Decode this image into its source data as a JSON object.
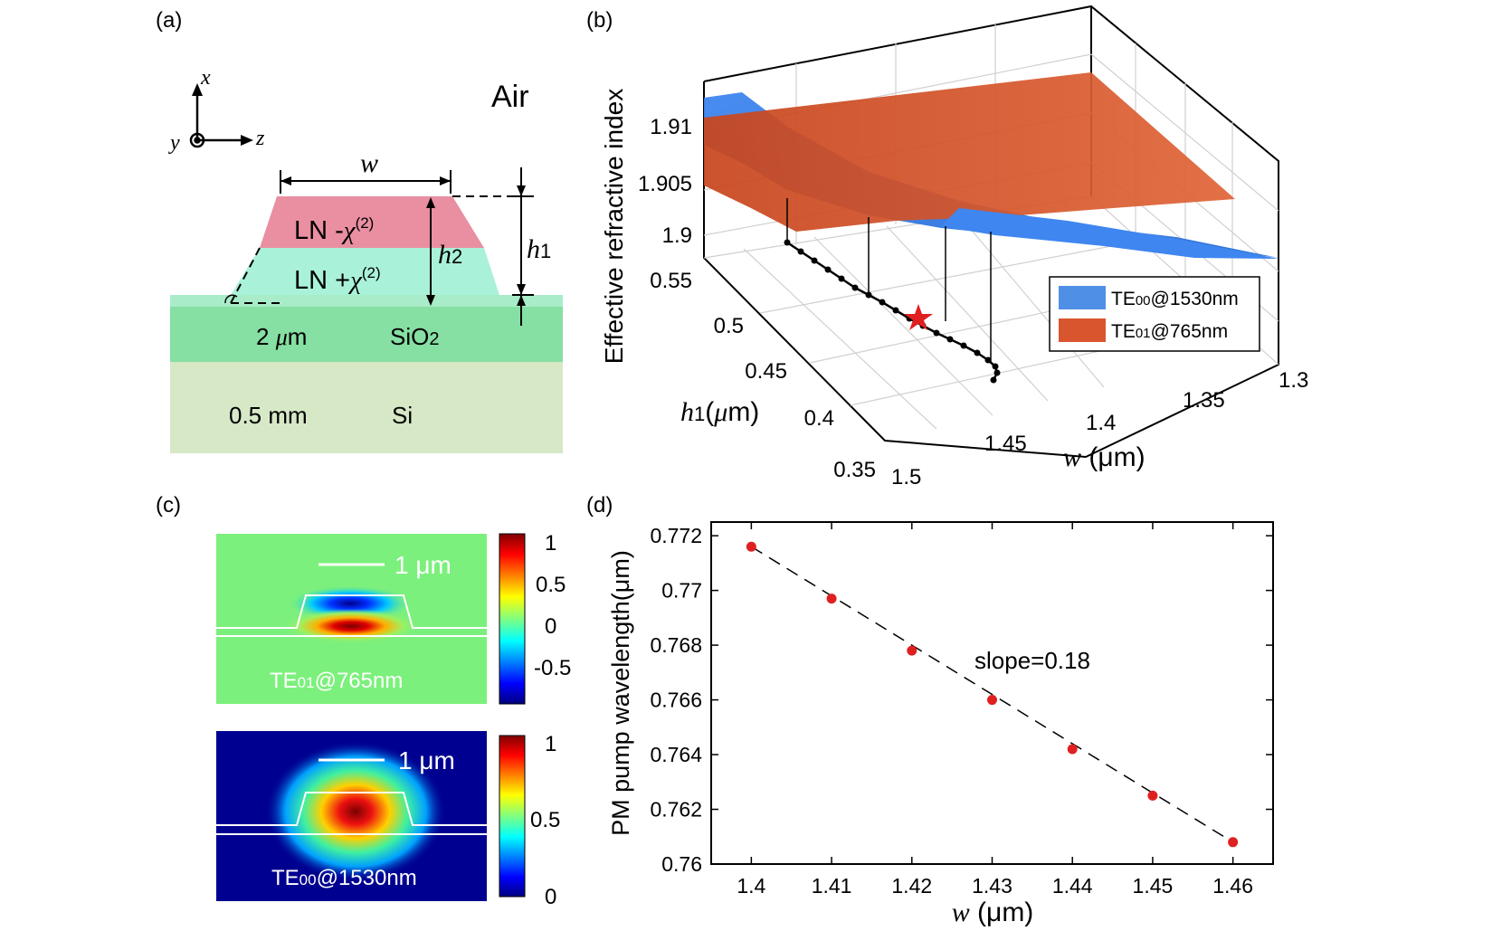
{
  "panels": {
    "a": {
      "label": "(a)",
      "axis_x": "x",
      "axis_y": "y",
      "axis_z": "z",
      "air": "Air",
      "width_symbol": "w",
      "h1_symbol": "h",
      "h1_sub": "1",
      "h2_symbol": "h",
      "h2_sub": "2",
      "ln_minus_prefix": "LN -",
      "ln_plus_prefix": "LN +",
      "chi": "χ",
      "chi_sup": "(2)",
      "sio2_thickness": "2 ",
      "mu": "μ",
      "sio2_thickness_unit": "m",
      "sio2_label": "SiO",
      "sio2_sub": "2",
      "si_thickness": "0.5 mm",
      "si_label": "Si",
      "colors": {
        "ln_top": "#e98fa1",
        "ln_bottom": "#a9f2d9",
        "sio2": "#86dfa3",
        "sio2_top": "#a9ecc9",
        "si": "#d6e8c6"
      }
    },
    "b": {
      "label": "(b)",
      "zlabel": "Effective refractive index",
      "z_ticks": [
        "1.91",
        "1.905",
        "1.9"
      ],
      "h1_ticks": [
        "0.55",
        "0.5",
        "0.45",
        "0.4",
        "0.35"
      ],
      "w_ticks": [
        "1.5",
        "1.45",
        "1.4",
        "1.35",
        "1.3"
      ],
      "ylabel_sym": "h",
      "ylabel_sub": "1",
      "ylabel_unit_open": "(",
      "ylabel_mu": "μ",
      "ylabel_unit_close": "m)",
      "xlabel_sym": "w",
      "xlabel_unit": " (μm)",
      "legend": [
        {
          "label": "TE",
          "sub": "00",
          "suffix": "@1530nm",
          "color": "#4f8fe6"
        },
        {
          "label": "TE",
          "sub": "01",
          "suffix": "@765nm",
          "color": "#d9552e"
        }
      ]
    },
    "c": {
      "label": "(c)",
      "top_scale": "1 μm",
      "top_mode": "TE",
      "top_mode_sub": "01",
      "top_mode_suffix": "@765nm",
      "top_ticks": [
        "1",
        "0.5",
        "0",
        "-0.5"
      ],
      "bottom_scale": "1 μm",
      "bottom_mode": "TE",
      "bottom_mode_sub": "00",
      "bottom_mode_suffix": "@1530nm",
      "bottom_ticks": [
        "1",
        "0.5",
        "0"
      ]
    }
  },
  "chart_data": {
    "type": "scatter",
    "panel_label": "(d)",
    "title": "",
    "ylabel": "PM pump wavelength(μm)",
    "xlabel_sym": "w",
    "xlabel_unit": " (μm)",
    "xlim": [
      1.4,
      1.46
    ],
    "ylim": [
      0.76,
      0.772
    ],
    "xticks": [
      1.4,
      1.41,
      1.42,
      1.43,
      1.44,
      1.45,
      1.46
    ],
    "yticks": [
      0.76,
      0.762,
      0.764,
      0.766,
      0.768,
      0.77,
      0.772
    ],
    "xtick_labels": [
      "1.4",
      "1.41",
      "1.42",
      "1.43",
      "1.44",
      "1.45",
      "1.46"
    ],
    "ytick_labels": [
      "0.76",
      "0.762",
      "0.764",
      "0.766",
      "0.768",
      "0.77",
      "0.772"
    ],
    "series": [
      {
        "x": [
          1.4,
          1.41,
          1.42,
          1.43,
          1.44,
          1.45,
          1.46
        ],
        "y": [
          0.7716,
          0.7697,
          0.7678,
          0.766,
          0.7642,
          0.7625,
          0.7608
        ],
        "color": "#e02020"
      }
    ],
    "fit_line": {
      "x": [
        1.4,
        1.46
      ],
      "y": [
        0.7716,
        0.7608
      ],
      "style": "dashed"
    },
    "annotation": "slope=0.18",
    "grid": false
  }
}
